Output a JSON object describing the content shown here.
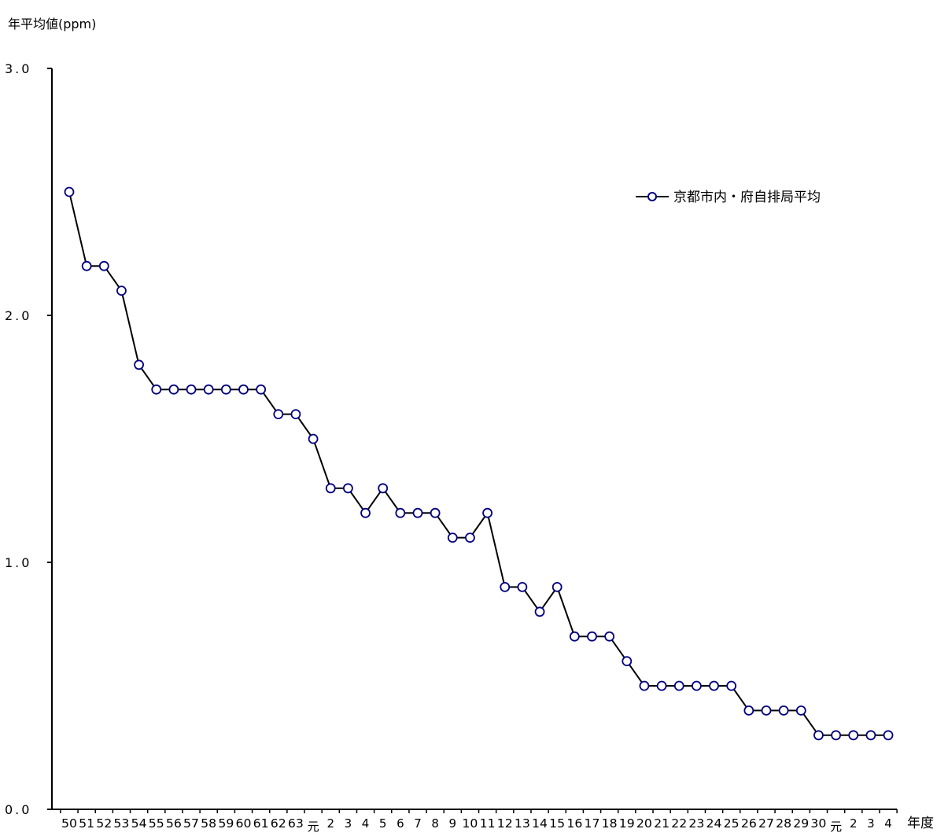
{
  "chart_data": {
    "type": "line",
    "ylabel": "年平均値(ppm)",
    "xlabel": "年度",
    "ylim": [
      0,
      3
    ],
    "yticks": [
      "0.0",
      "1.0",
      "2.0",
      "3.0"
    ],
    "ytick_values": [
      0,
      1,
      2,
      3
    ],
    "grid": false,
    "legend_position": "top-right",
    "line_color": "#000000",
    "marker_edge_color": "#000080",
    "marker_fill_color": "#ffffff",
    "categories": [
      "50",
      "51",
      "52",
      "53",
      "54",
      "55",
      "56",
      "57",
      "58",
      "59",
      "60",
      "61",
      "62",
      "63",
      "元",
      "2",
      "3",
      "4",
      "5",
      "6",
      "7",
      "8",
      "9",
      "10",
      "11",
      "12",
      "13",
      "14",
      "15",
      "16",
      "17",
      "18",
      "19",
      "20",
      "21",
      "22",
      "23",
      "24",
      "25",
      "26",
      "27",
      "28",
      "29",
      "30",
      "元",
      "2",
      "3",
      "4"
    ],
    "series": [
      {
        "name": "京都市内・府自排局平均",
        "values": [
          2.5,
          2.2,
          2.2,
          2.1,
          1.8,
          1.7,
          1.7,
          1.7,
          1.7,
          1.7,
          1.7,
          1.7,
          1.6,
          1.6,
          1.5,
          1.3,
          1.3,
          1.2,
          1.3,
          1.2,
          1.2,
          1.2,
          1.1,
          1.1,
          1.2,
          0.9,
          0.9,
          0.8,
          0.9,
          0.7,
          0.7,
          0.7,
          0.6,
          0.5,
          0.5,
          0.5,
          0.5,
          0.5,
          0.5,
          0.4,
          0.4,
          0.4,
          0.4,
          0.3,
          0.3,
          0.3,
          0.3,
          0.3
        ]
      }
    ]
  }
}
